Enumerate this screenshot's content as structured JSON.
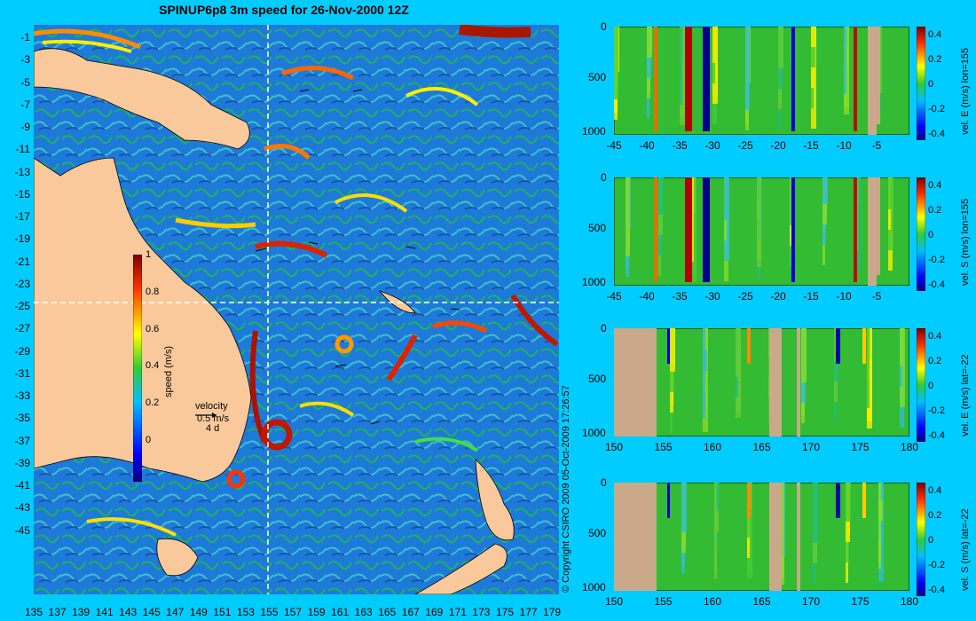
{
  "title": "SPINUP6p8 3m speed for 26-Nov-2000 12Z",
  "copyright": "© Copyright CSIRO 2009   05-Oct-2009 17:26:57",
  "map": {
    "lat_ticks": [
      "-1",
      "-3",
      "-5",
      "-7",
      "-9",
      "-11",
      "-13",
      "-15",
      "-17",
      "-19",
      "-21",
      "-23",
      "-25",
      "-27",
      "-29",
      "-31",
      "-33",
      "-35",
      "-37",
      "-39",
      "-41",
      "-43",
      "-45"
    ],
    "lon_ticks": [
      "135",
      "137",
      "139",
      "141",
      "143",
      "145",
      "147",
      "149",
      "151",
      "153",
      "155",
      "157",
      "159",
      "161",
      "163",
      "165",
      "167",
      "169",
      "171",
      "173",
      "175",
      "177",
      "179"
    ],
    "colorbar": {
      "label": "speed (m/s)",
      "ticks": [
        "1",
        "0.8",
        "0.6",
        "0.4",
        "0.2",
        "0"
      ]
    },
    "velocity_legend": {
      "title": "velocity",
      "scale": "0.5 m/s",
      "days": "4 d"
    },
    "colors": {
      "land": "#f9c99b",
      "ocean_base": "#1e7ad8"
    }
  },
  "sections": [
    {
      "label": "vel. E (m/s) lon=155",
      "x_ticks": [
        "-45",
        "-40",
        "-35",
        "-30",
        "-25",
        "-20",
        "-15",
        "-10",
        "-5"
      ],
      "y_ticks": [
        "0",
        "500",
        "1000"
      ],
      "cbar_ticks": [
        "0.4",
        "0.2",
        "0",
        "-0.2",
        "-0.4"
      ]
    },
    {
      "label": "vel. S (m/s) lon=155",
      "x_ticks": [
        "-45",
        "-40",
        "-35",
        "-30",
        "-25",
        "-20",
        "-15",
        "-10",
        "-5"
      ],
      "y_ticks": [
        "0",
        "500",
        "1000"
      ],
      "cbar_ticks": [
        "0.4",
        "0.2",
        "0",
        "-0.2",
        "-0.4"
      ]
    },
    {
      "label": "vel. E (m/s) lat=-22",
      "x_ticks": [
        "150",
        "155",
        "160",
        "165",
        "170",
        "175",
        "180"
      ],
      "y_ticks": [
        "0",
        "500",
        "1000"
      ],
      "cbar_ticks": [
        "0.4",
        "0.2",
        "0",
        "-0.2",
        "-0.4"
      ]
    },
    {
      "label": "vel. S (m/s) lat=-22",
      "x_ticks": [
        "150",
        "155",
        "160",
        "165",
        "170",
        "175",
        "180"
      ],
      "y_ticks": [
        "0",
        "500",
        "1000"
      ],
      "cbar_ticks": [
        "0.4",
        "0.2",
        "0",
        "-0.2",
        "-0.4"
      ]
    }
  ],
  "section_colors": {
    "seabed": "#c9a98a",
    "background": "#33bb33"
  }
}
